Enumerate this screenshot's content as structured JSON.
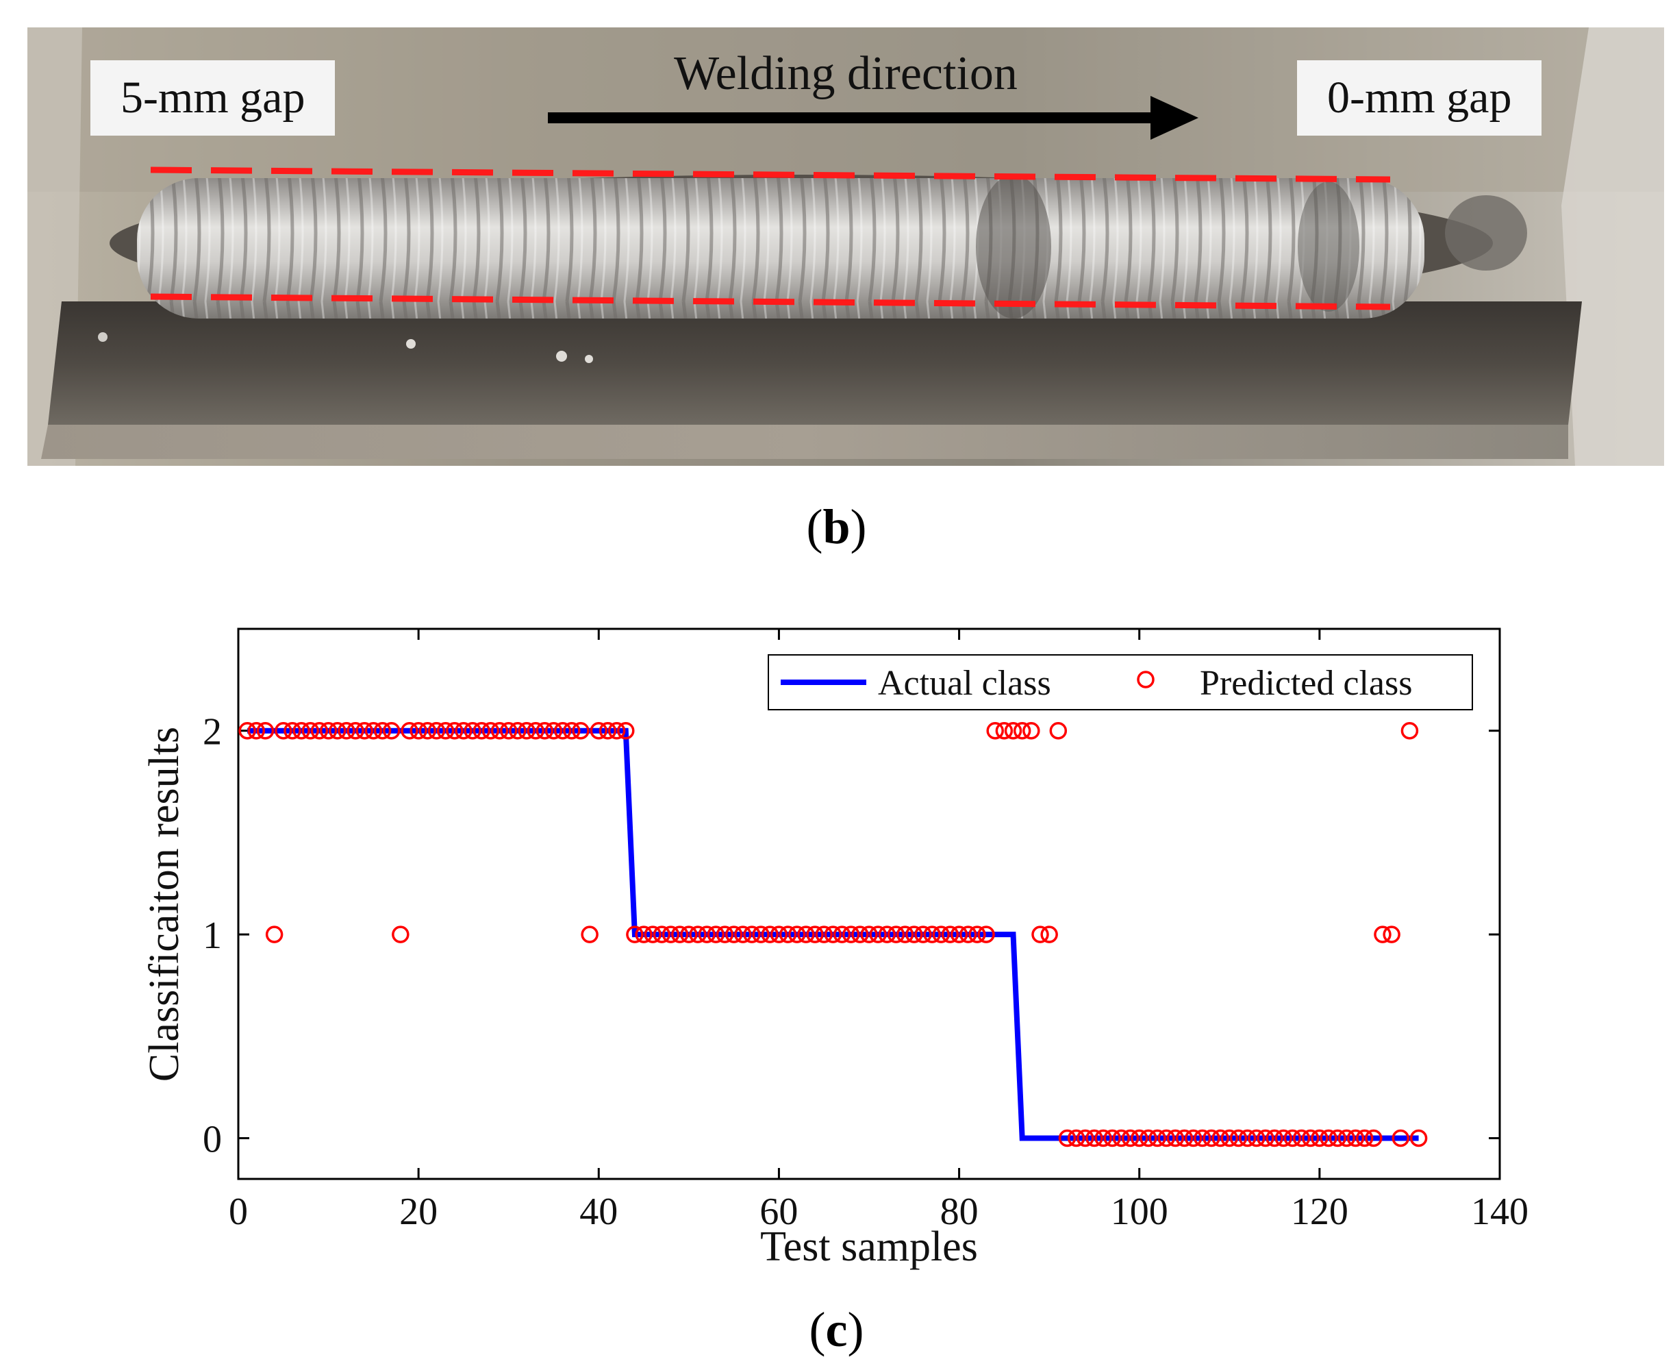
{
  "panel_b": {
    "left_label": "5-mm gap",
    "right_label": "0-mm gap",
    "direction_label": "Welding direction",
    "caption_letter": "b"
  },
  "panel_c": {
    "caption_letter": "c"
  },
  "colors": {
    "actual": "#0000ff",
    "predicted": "#ff0000",
    "guide_dash": "#ff1a1a"
  },
  "chart_data": {
    "type": "scatter",
    "title": "",
    "xlabel": "Test samples",
    "ylabel": "Classificaiton results",
    "xlim": [
      0,
      140
    ],
    "ylim": [
      -0.2,
      2.5
    ],
    "xticks": [
      0,
      20,
      40,
      60,
      80,
      100,
      120,
      140
    ],
    "yticks": [
      0,
      1,
      2
    ],
    "legend": {
      "position": "top-right",
      "entries": [
        "Actual class",
        "Predicted class"
      ]
    },
    "series": [
      {
        "name": "Actual class",
        "style": "line",
        "points": [
          [
            1,
            2
          ],
          [
            43,
            2
          ],
          [
            44,
            1
          ],
          [
            86,
            1
          ],
          [
            87,
            0
          ],
          [
            131,
            0
          ]
        ]
      },
      {
        "name": "Predicted class",
        "style": "circle",
        "points": [
          [
            1,
            2
          ],
          [
            2,
            2
          ],
          [
            3,
            2
          ],
          [
            4,
            1
          ],
          [
            5,
            2
          ],
          [
            6,
            2
          ],
          [
            7,
            2
          ],
          [
            8,
            2
          ],
          [
            9,
            2
          ],
          [
            10,
            2
          ],
          [
            11,
            2
          ],
          [
            12,
            2
          ],
          [
            13,
            2
          ],
          [
            14,
            2
          ],
          [
            15,
            2
          ],
          [
            16,
            2
          ],
          [
            17,
            2
          ],
          [
            18,
            1
          ],
          [
            19,
            2
          ],
          [
            20,
            2
          ],
          [
            21,
            2
          ],
          [
            22,
            2
          ],
          [
            23,
            2
          ],
          [
            24,
            2
          ],
          [
            25,
            2
          ],
          [
            26,
            2
          ],
          [
            27,
            2
          ],
          [
            28,
            2
          ],
          [
            29,
            2
          ],
          [
            30,
            2
          ],
          [
            31,
            2
          ],
          [
            32,
            2
          ],
          [
            33,
            2
          ],
          [
            34,
            2
          ],
          [
            35,
            2
          ],
          [
            36,
            2
          ],
          [
            37,
            2
          ],
          [
            38,
            2
          ],
          [
            39,
            1
          ],
          [
            40,
            2
          ],
          [
            41,
            2
          ],
          [
            42,
            2
          ],
          [
            43,
            2
          ],
          [
            44,
            1
          ],
          [
            45,
            1
          ],
          [
            46,
            1
          ],
          [
            47,
            1
          ],
          [
            48,
            1
          ],
          [
            49,
            1
          ],
          [
            50,
            1
          ],
          [
            51,
            1
          ],
          [
            52,
            1
          ],
          [
            53,
            1
          ],
          [
            54,
            1
          ],
          [
            55,
            1
          ],
          [
            56,
            1
          ],
          [
            57,
            1
          ],
          [
            58,
            1
          ],
          [
            59,
            1
          ],
          [
            60,
            1
          ],
          [
            61,
            1
          ],
          [
            62,
            1
          ],
          [
            63,
            1
          ],
          [
            64,
            1
          ],
          [
            65,
            1
          ],
          [
            66,
            1
          ],
          [
            67,
            1
          ],
          [
            68,
            1
          ],
          [
            69,
            1
          ],
          [
            70,
            1
          ],
          [
            71,
            1
          ],
          [
            72,
            1
          ],
          [
            73,
            1
          ],
          [
            74,
            1
          ],
          [
            75,
            1
          ],
          [
            76,
            1
          ],
          [
            77,
            1
          ],
          [
            78,
            1
          ],
          [
            79,
            1
          ],
          [
            80,
            1
          ],
          [
            81,
            1
          ],
          [
            82,
            1
          ],
          [
            83,
            1
          ],
          [
            84,
            2
          ],
          [
            85,
            2
          ],
          [
            86,
            2
          ],
          [
            87,
            2
          ],
          [
            88,
            2
          ],
          [
            89,
            1
          ],
          [
            90,
            1
          ],
          [
            91,
            2
          ],
          [
            92,
            0
          ],
          [
            93,
            0
          ],
          [
            94,
            0
          ],
          [
            95,
            0
          ],
          [
            96,
            0
          ],
          [
            97,
            0
          ],
          [
            98,
            0
          ],
          [
            99,
            0
          ],
          [
            100,
            0
          ],
          [
            101,
            0
          ],
          [
            102,
            0
          ],
          [
            103,
            0
          ],
          [
            104,
            0
          ],
          [
            105,
            0
          ],
          [
            106,
            0
          ],
          [
            107,
            0
          ],
          [
            108,
            0
          ],
          [
            109,
            0
          ],
          [
            110,
            0
          ],
          [
            111,
            0
          ],
          [
            112,
            0
          ],
          [
            113,
            0
          ],
          [
            114,
            0
          ],
          [
            115,
            0
          ],
          [
            116,
            0
          ],
          [
            117,
            0
          ],
          [
            118,
            0
          ],
          [
            119,
            0
          ],
          [
            120,
            0
          ],
          [
            121,
            0
          ],
          [
            122,
            0
          ],
          [
            123,
            0
          ],
          [
            124,
            0
          ],
          [
            125,
            0
          ],
          [
            126,
            0
          ],
          [
            127,
            1
          ],
          [
            128,
            1
          ],
          [
            129,
            0
          ],
          [
            130,
            2
          ],
          [
            131,
            0
          ]
        ]
      }
    ]
  }
}
